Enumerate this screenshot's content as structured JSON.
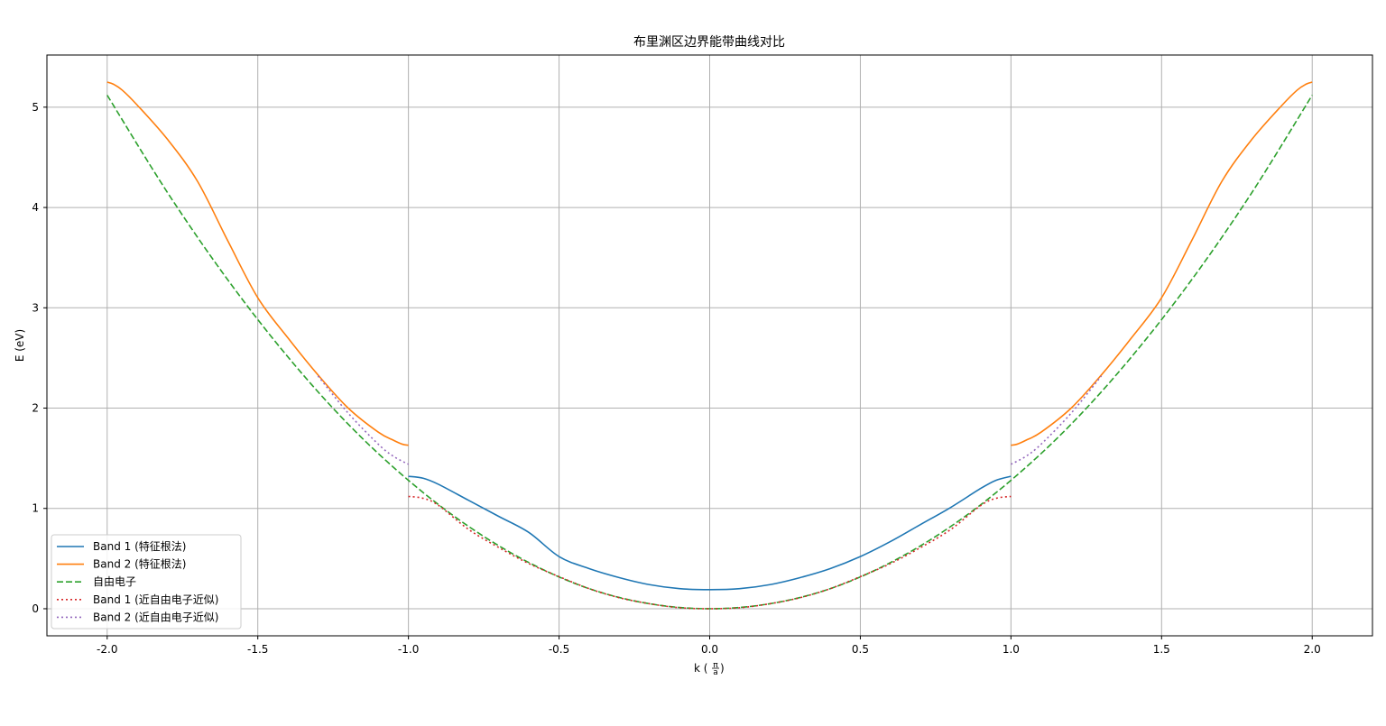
{
  "chart_data": {
    "type": "line",
    "title": "布里渊区边界能带曲线对比",
    "xlabel": "k (π/a)",
    "xlabel_parts": {
      "prefix": "k (",
      "num": "π",
      "den": "a",
      "suffix": ")"
    },
    "ylabel": "E (eV)",
    "xlim": [
      -2.2,
      2.2
    ],
    "ylim": [
      -0.27,
      5.52
    ],
    "xticks": [
      -2.0,
      -1.5,
      -1.0,
      -0.5,
      0.0,
      0.5,
      1.0,
      1.5,
      2.0
    ],
    "xtick_labels": [
      "-2.0",
      "-1.5",
      "-1.0",
      "-0.5",
      "0.0",
      "0.5",
      "1.0",
      "1.5",
      "2.0"
    ],
    "yticks": [
      0,
      1,
      2,
      3,
      4,
      5
    ],
    "ytick_labels": [
      "0",
      "1",
      "2",
      "3",
      "4",
      "5"
    ],
    "grid": true,
    "legend_position": "lower-left",
    "series": [
      {
        "name": "Band 1 (特征根法)",
        "color": "#1f77b4",
        "style": "solid",
        "segments": [
          {
            "x": [
              -1.0,
              -0.95,
              -0.9,
              -0.8,
              -0.7,
              -0.6,
              -0.5,
              -0.4,
              -0.3,
              -0.2,
              -0.1,
              0.0,
              0.1,
              0.2,
              0.3,
              0.4,
              0.5,
              0.6,
              0.7,
              0.8,
              0.9,
              0.95,
              1.0
            ],
            "y": [
              1.32,
              1.3,
              1.24,
              1.08,
              0.92,
              0.76,
              0.52,
              0.4,
              0.31,
              0.24,
              0.2,
              0.19,
              0.2,
              0.24,
              0.31,
              0.4,
              0.52,
              0.67,
              0.84,
              1.01,
              1.2,
              1.28,
              1.32
            ]
          }
        ]
      },
      {
        "name": "Band 2 (特征根法)",
        "color": "#ff7f0e",
        "style": "solid",
        "segments": [
          {
            "x": [
              -2.0,
              -1.98,
              -1.95,
              -1.9,
              -1.8,
              -1.7,
              -1.6,
              -1.5,
              -1.4,
              -1.3,
              -1.2,
              -1.1,
              -1.05,
              -1.02,
              -1.0
            ],
            "y": [
              5.25,
              5.23,
              5.17,
              5.02,
              4.68,
              4.26,
              3.67,
              3.1,
              2.7,
              2.33,
              2.0,
              1.76,
              1.68,
              1.64,
              1.63
            ]
          },
          {
            "x": [
              1.0,
              1.02,
              1.05,
              1.1,
              1.2,
              1.3,
              1.4,
              1.5,
              1.6,
              1.7,
              1.8,
              1.9,
              1.95,
              1.98,
              2.0
            ],
            "y": [
              1.63,
              1.64,
              1.68,
              1.76,
              2.0,
              2.33,
              2.7,
              3.1,
              3.67,
              4.26,
              4.68,
              5.02,
              5.17,
              5.23,
              5.25
            ]
          }
        ]
      },
      {
        "name": "自由电子",
        "color": "#2ca02c",
        "style": "dashed",
        "segments": [
          {
            "x": [
              -2.0,
              -1.8,
              -1.6,
              -1.4,
              -1.2,
              -1.0,
              -0.8,
              -0.6,
              -0.4,
              -0.2,
              0.0,
              0.2,
              0.4,
              0.6,
              0.8,
              1.0,
              1.2,
              1.4,
              1.6,
              1.8,
              2.0
            ],
            "y": [
              5.12,
              4.15,
              3.28,
              2.51,
              1.84,
              1.28,
              0.82,
              0.46,
              0.2,
              0.05,
              0.0,
              0.05,
              0.2,
              0.46,
              0.82,
              1.28,
              1.84,
              2.51,
              3.28,
              4.15,
              5.12
            ]
          }
        ]
      },
      {
        "name": "Band 1 (近自由电子近似)",
        "color": "#d62728",
        "style": "dotted",
        "segments": [
          {
            "x": [
              -1.0,
              -0.95,
              -0.9,
              -0.8,
              -0.7,
              -0.6,
              -0.5,
              -0.4,
              -0.3,
              -0.2,
              -0.1,
              0.0,
              0.1,
              0.2,
              0.3,
              0.4,
              0.5,
              0.6,
              0.7,
              0.8,
              0.9,
              0.95,
              1.0
            ],
            "y": [
              1.12,
              1.1,
              1.03,
              0.79,
              0.61,
              0.45,
              0.32,
              0.2,
              0.11,
              0.05,
              0.01,
              0.0,
              0.01,
              0.05,
              0.11,
              0.2,
              0.32,
              0.45,
              0.61,
              0.79,
              1.03,
              1.1,
              1.12
            ]
          }
        ]
      },
      {
        "name": "Band 2 (近自由电子近似)",
        "color": "#9467bd",
        "style": "dotted",
        "segments": [
          {
            "x": [
              -1.3,
              -1.2,
              -1.1,
              -1.05,
              -1.0
            ],
            "y": [
              2.32,
              1.95,
              1.64,
              1.52,
              1.44
            ]
          },
          {
            "x": [
              1.0,
              1.05,
              1.1,
              1.2,
              1.3
            ],
            "y": [
              1.44,
              1.52,
              1.64,
              1.95,
              2.32
            ]
          }
        ]
      }
    ]
  }
}
